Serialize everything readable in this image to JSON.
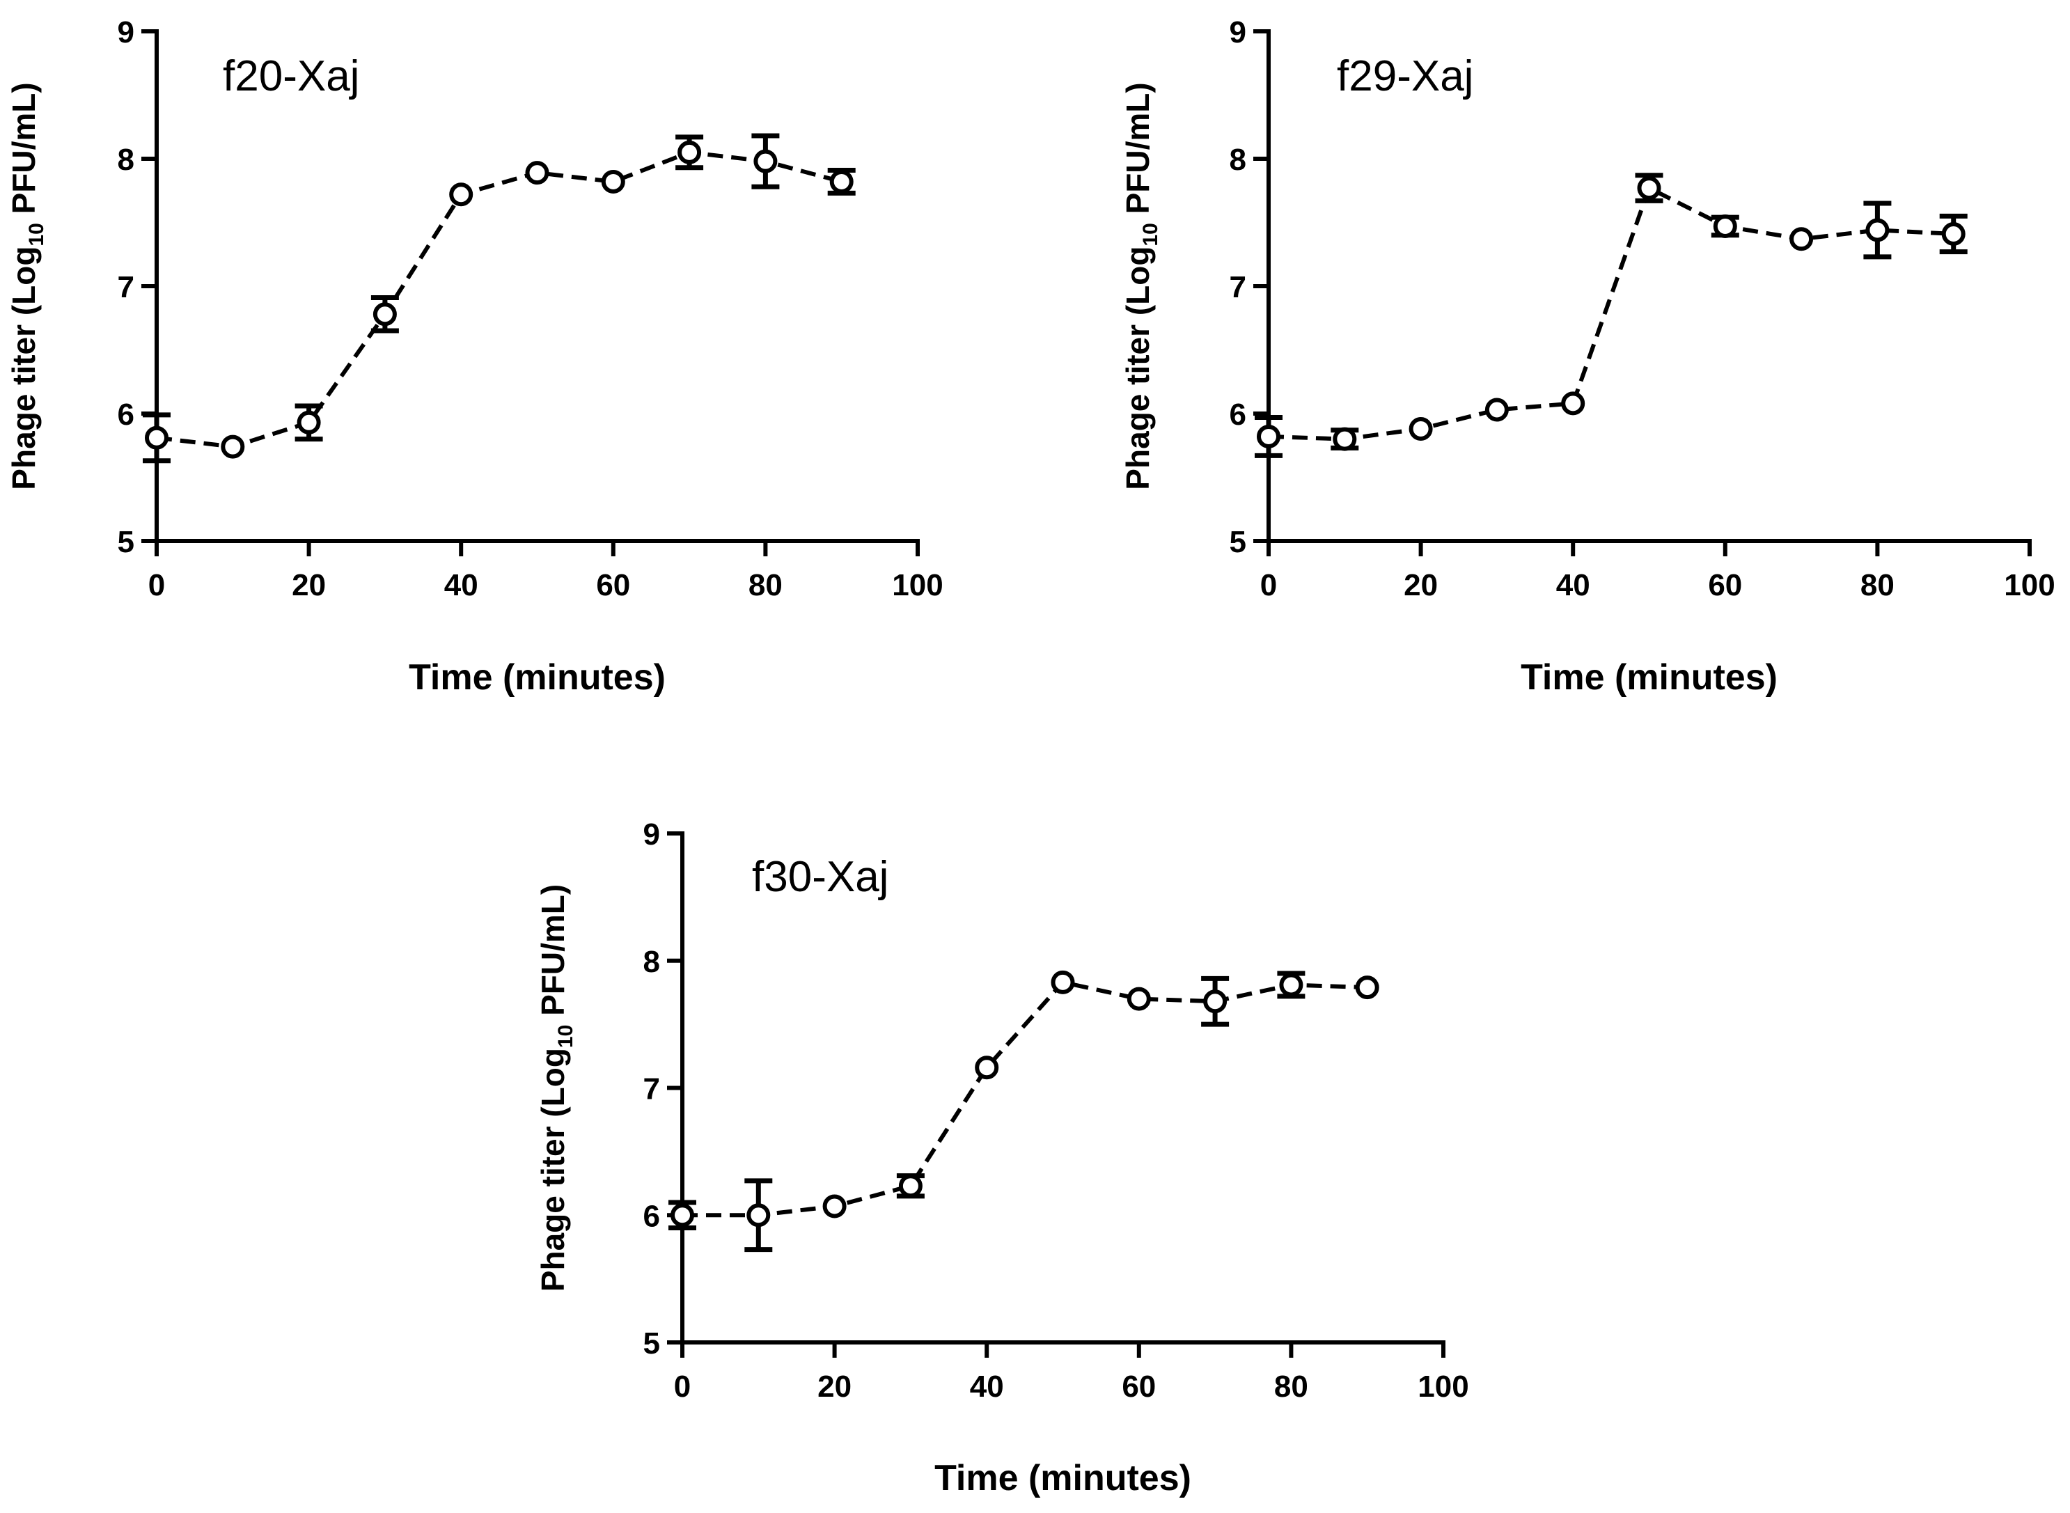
{
  "chart_data": [
    {
      "type": "line",
      "panel_label": "f20-Xaj",
      "xlabel": "Time (minutes)",
      "ylabel": {
        "prefix": "Phage titer (Log",
        "subscript": "10",
        "suffix": " PFU/mL)"
      },
      "xlim": [
        0,
        100
      ],
      "ylim": [
        5,
        9
      ],
      "xticks": [
        "0",
        "20",
        "40",
        "60",
        "80",
        "100"
      ],
      "yticks": [
        "5",
        "6",
        "7",
        "8",
        "9"
      ],
      "grid": false,
      "line_style": "dashed",
      "marker": "open-circle",
      "series": [
        {
          "x": [
            0,
            10,
            20,
            30,
            40,
            50,
            60,
            70,
            80,
            90
          ],
          "y": [
            5.81,
            5.74,
            5.93,
            6.78,
            7.72,
            7.89,
            7.82,
            8.05,
            7.98,
            7.82
          ],
          "error": [
            0.18,
            0.0,
            0.13,
            0.13,
            0.0,
            0.0,
            0.0,
            0.12,
            0.2,
            0.09
          ]
        }
      ]
    },
    {
      "type": "line",
      "panel_label": "f29-Xaj",
      "xlabel": "Time (minutes)",
      "ylabel": {
        "prefix": "Phage titer (Log",
        "subscript": "10",
        "suffix": " PFU/mL)"
      },
      "xlim": [
        0,
        100
      ],
      "ylim": [
        5,
        9
      ],
      "xticks": [
        "0",
        "20",
        "40",
        "60",
        "80",
        "100"
      ],
      "yticks": [
        "5",
        "6",
        "7",
        "8",
        "9"
      ],
      "grid": false,
      "line_style": "dashed",
      "marker": "open-circle",
      "series": [
        {
          "x": [
            0,
            10,
            20,
            30,
            40,
            50,
            60,
            70,
            80,
            90
          ],
          "y": [
            5.82,
            5.8,
            5.88,
            6.03,
            6.08,
            7.77,
            7.47,
            7.37,
            7.44,
            7.41
          ],
          "error": [
            0.15,
            0.07,
            0.0,
            0.0,
            0.0,
            0.1,
            0.07,
            0.0,
            0.21,
            0.14
          ]
        }
      ]
    },
    {
      "type": "line",
      "panel_label": "f30-Xaj",
      "xlabel": "Time (minutes)",
      "ylabel": {
        "prefix": "Phage titer (Log",
        "subscript": "10",
        "suffix": " PFU/mL)"
      },
      "xlim": [
        0,
        100
      ],
      "ylim": [
        5,
        9
      ],
      "xticks": [
        "0",
        "20",
        "40",
        "60",
        "80",
        "100"
      ],
      "yticks": [
        "5",
        "6",
        "7",
        "8",
        "9"
      ],
      "grid": false,
      "line_style": "dashed",
      "marker": "open-circle",
      "series": [
        {
          "x": [
            0,
            10,
            20,
            30,
            40,
            50,
            60,
            70,
            80,
            90
          ],
          "y": [
            6.0,
            6.0,
            6.07,
            6.23,
            7.16,
            7.83,
            7.7,
            7.68,
            7.81,
            7.79
          ],
          "error": [
            0.1,
            0.27,
            0.0,
            0.08,
            0.0,
            0.0,
            0.0,
            0.18,
            0.09,
            0.0
          ]
        }
      ]
    }
  ]
}
